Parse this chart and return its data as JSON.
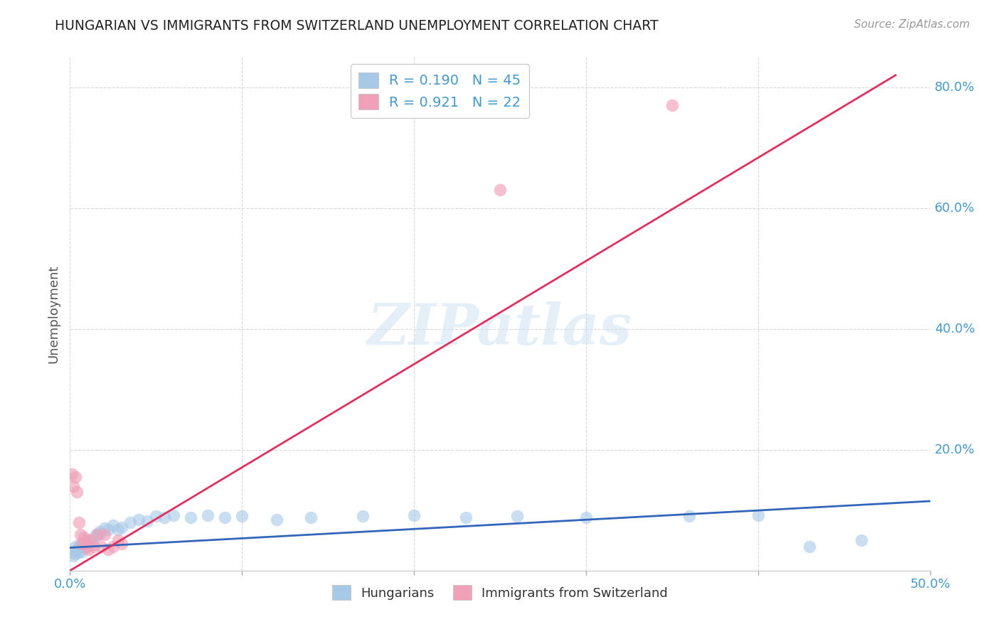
{
  "title": "HUNGARIAN VS IMMIGRANTS FROM SWITZERLAND UNEMPLOYMENT CORRELATION CHART",
  "source": "Source: ZipAtlas.com",
  "ylabel": "Unemployment",
  "background_color": "#ffffff",
  "grid_color": "#d8d8d8",
  "watermark_text": "ZIPatlas",
  "blue_color": "#a8c8e8",
  "pink_color": "#f0a0b8",
  "blue_line_color": "#3366bb",
  "pink_line_color": "#e03060",
  "axis_label_color": "#4499cc",
  "title_color": "#222222",
  "hungarian_points_x": [
    0.001,
    0.002,
    0.003,
    0.003,
    0.004,
    0.005,
    0.005,
    0.006,
    0.007,
    0.008,
    0.009,
    0.01,
    0.011,
    0.012,
    0.013,
    0.015,
    0.016,
    0.017,
    0.018,
    0.02,
    0.022,
    0.025,
    0.028,
    0.03,
    0.035,
    0.04,
    0.045,
    0.05,
    0.055,
    0.06,
    0.07,
    0.08,
    0.09,
    0.1,
    0.12,
    0.14,
    0.17,
    0.2,
    0.23,
    0.26,
    0.3,
    0.36,
    0.4,
    0.43,
    0.46
  ],
  "hungarian_points_y": [
    0.03,
    0.025,
    0.04,
    0.028,
    0.035,
    0.038,
    0.03,
    0.045,
    0.032,
    0.038,
    0.042,
    0.04,
    0.048,
    0.052,
    0.045,
    0.06,
    0.058,
    0.065,
    0.062,
    0.07,
    0.068,
    0.075,
    0.068,
    0.072,
    0.08,
    0.085,
    0.082,
    0.09,
    0.088,
    0.092,
    0.088,
    0.092,
    0.088,
    0.09,
    0.085,
    0.088,
    0.09,
    0.092,
    0.088,
    0.09,
    0.088,
    0.09,
    0.092,
    0.04,
    0.05
  ],
  "swiss_points_x": [
    0.001,
    0.002,
    0.003,
    0.004,
    0.005,
    0.006,
    0.007,
    0.008,
    0.009,
    0.01,
    0.011,
    0.012,
    0.014,
    0.016,
    0.018,
    0.02,
    0.022,
    0.025,
    0.028,
    0.03,
    0.25,
    0.35
  ],
  "swiss_points_y": [
    0.16,
    0.14,
    0.155,
    0.13,
    0.08,
    0.06,
    0.045,
    0.055,
    0.05,
    0.04,
    0.035,
    0.05,
    0.04,
    0.06,
    0.04,
    0.06,
    0.035,
    0.04,
    0.05,
    0.045,
    0.63,
    0.77
  ],
  "blue_line_x": [
    0.0,
    0.5
  ],
  "blue_line_y": [
    0.038,
    0.115
  ],
  "pink_line_x": [
    0.0,
    0.48
  ],
  "pink_line_y": [
    0.0,
    0.82
  ],
  "xlim": [
    0.0,
    0.5
  ],
  "ylim": [
    0.0,
    0.85
  ],
  "xtick_positions": [
    0.0,
    0.1,
    0.2,
    0.3,
    0.4,
    0.5
  ],
  "xtick_labels": [
    "0.0%",
    "",
    "",
    "",
    "",
    "50.0%"
  ],
  "ytick_positions": [
    0.2,
    0.4,
    0.6,
    0.8
  ],
  "ytick_labels": [
    "20.0%",
    "40.0%",
    "60.0%",
    "80.0%"
  ]
}
